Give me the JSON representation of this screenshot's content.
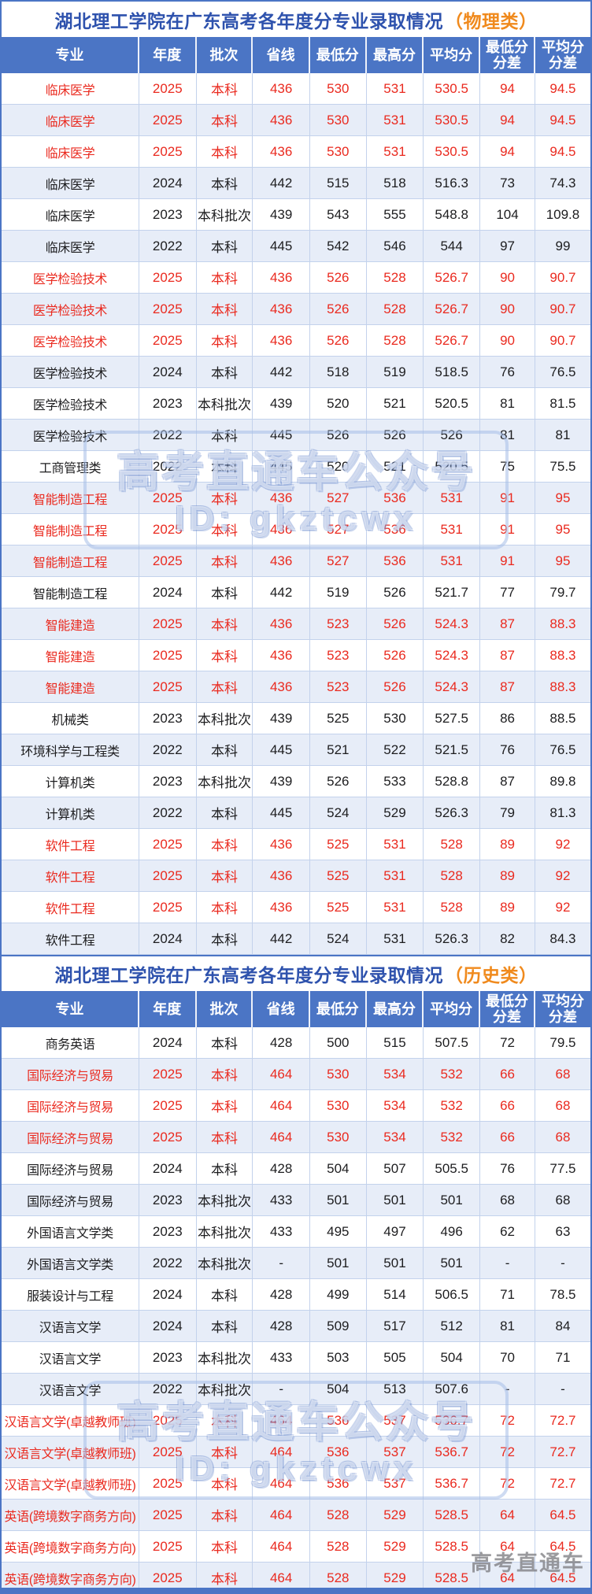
{
  "colors": {
    "accent_blue": "#4b75c5",
    "title_blue": "#2e52ad",
    "tag_orange": "#f08a1d",
    "highlight_red": "#ea2a1f",
    "alt_row": "#e7edf8",
    "grid_line": "#c3d2ec"
  },
  "watermark": {
    "line1": "高考直通车公众号",
    "line2": "ID: gkztcwx",
    "corner": "高考直通车"
  },
  "tables": [
    {
      "title": "湖北理工学院在广东高考各年度分专业录取情况",
      "title_tag": "（物理类）",
      "columns": [
        "专业",
        "年度",
        "批次",
        "省线",
        "最低分",
        "最高分",
        "平均分",
        "最低分\n分差",
        "平均分\n分差"
      ],
      "rows": [
        {
          "red": true,
          "cells": [
            "临床医学",
            "2025",
            "本科",
            "436",
            "530",
            "531",
            "530.5",
            "94",
            "94.5"
          ]
        },
        {
          "red": true,
          "cells": [
            "临床医学",
            "2025",
            "本科",
            "436",
            "530",
            "531",
            "530.5",
            "94",
            "94.5"
          ]
        },
        {
          "red": true,
          "cells": [
            "临床医学",
            "2025",
            "本科",
            "436",
            "530",
            "531",
            "530.5",
            "94",
            "94.5"
          ]
        },
        {
          "red": false,
          "cells": [
            "临床医学",
            "2024",
            "本科",
            "442",
            "515",
            "518",
            "516.3",
            "73",
            "74.3"
          ]
        },
        {
          "red": false,
          "cells": [
            "临床医学",
            "2023",
            "本科批次",
            "439",
            "543",
            "555",
            "548.8",
            "104",
            "109.8"
          ]
        },
        {
          "red": false,
          "cells": [
            "临床医学",
            "2022",
            "本科",
            "445",
            "542",
            "546",
            "544",
            "97",
            "99"
          ]
        },
        {
          "red": true,
          "cells": [
            "医学检验技术",
            "2025",
            "本科",
            "436",
            "526",
            "528",
            "526.7",
            "90",
            "90.7"
          ]
        },
        {
          "red": true,
          "cells": [
            "医学检验技术",
            "2025",
            "本科",
            "436",
            "526",
            "528",
            "526.7",
            "90",
            "90.7"
          ]
        },
        {
          "red": true,
          "cells": [
            "医学检验技术",
            "2025",
            "本科",
            "436",
            "526",
            "528",
            "526.7",
            "90",
            "90.7"
          ]
        },
        {
          "red": false,
          "cells": [
            "医学检验技术",
            "2024",
            "本科",
            "442",
            "518",
            "519",
            "518.5",
            "76",
            "76.5"
          ]
        },
        {
          "red": false,
          "cells": [
            "医学检验技术",
            "2023",
            "本科批次",
            "439",
            "520",
            "521",
            "520.5",
            "81",
            "81.5"
          ]
        },
        {
          "red": false,
          "cells": [
            "医学检验技术",
            "2022",
            "本科",
            "445",
            "526",
            "526",
            "526",
            "81",
            "81"
          ]
        },
        {
          "red": false,
          "cells": [
            "工商管理类",
            "2022",
            "本科",
            "445",
            "520",
            "521",
            "520.5",
            "75",
            "75.5"
          ]
        },
        {
          "red": true,
          "cells": [
            "智能制造工程",
            "2025",
            "本科",
            "436",
            "527",
            "536",
            "531",
            "91",
            "95"
          ]
        },
        {
          "red": true,
          "cells": [
            "智能制造工程",
            "2025",
            "本科",
            "436",
            "527",
            "536",
            "531",
            "91",
            "95"
          ]
        },
        {
          "red": true,
          "cells": [
            "智能制造工程",
            "2025",
            "本科",
            "436",
            "527",
            "536",
            "531",
            "91",
            "95"
          ]
        },
        {
          "red": false,
          "cells": [
            "智能制造工程",
            "2024",
            "本科",
            "442",
            "519",
            "526",
            "521.7",
            "77",
            "79.7"
          ]
        },
        {
          "red": true,
          "cells": [
            "智能建造",
            "2025",
            "本科",
            "436",
            "523",
            "526",
            "524.3",
            "87",
            "88.3"
          ]
        },
        {
          "red": true,
          "cells": [
            "智能建造",
            "2025",
            "本科",
            "436",
            "523",
            "526",
            "524.3",
            "87",
            "88.3"
          ]
        },
        {
          "red": true,
          "cells": [
            "智能建造",
            "2025",
            "本科",
            "436",
            "523",
            "526",
            "524.3",
            "87",
            "88.3"
          ]
        },
        {
          "red": false,
          "cells": [
            "机械类",
            "2023",
            "本科批次",
            "439",
            "525",
            "530",
            "527.5",
            "86",
            "88.5"
          ]
        },
        {
          "red": false,
          "cells": [
            "环境科学与工程类",
            "2022",
            "本科",
            "445",
            "521",
            "522",
            "521.5",
            "76",
            "76.5"
          ]
        },
        {
          "red": false,
          "cells": [
            "计算机类",
            "2023",
            "本科批次",
            "439",
            "526",
            "533",
            "528.8",
            "87",
            "89.8"
          ]
        },
        {
          "red": false,
          "cells": [
            "计算机类",
            "2022",
            "本科",
            "445",
            "524",
            "529",
            "526.3",
            "79",
            "81.3"
          ]
        },
        {
          "red": true,
          "cells": [
            "软件工程",
            "2025",
            "本科",
            "436",
            "525",
            "531",
            "528",
            "89",
            "92"
          ]
        },
        {
          "red": true,
          "cells": [
            "软件工程",
            "2025",
            "本科",
            "436",
            "525",
            "531",
            "528",
            "89",
            "92"
          ]
        },
        {
          "red": true,
          "cells": [
            "软件工程",
            "2025",
            "本科",
            "436",
            "525",
            "531",
            "528",
            "89",
            "92"
          ]
        },
        {
          "red": false,
          "cells": [
            "软件工程",
            "2024",
            "本科",
            "442",
            "524",
            "531",
            "526.3",
            "82",
            "84.3"
          ]
        }
      ]
    },
    {
      "title": "湖北理工学院在广东高考各年度分专业录取情况",
      "title_tag": "（历史类）",
      "columns": [
        "专业",
        "年度",
        "批次",
        "省线",
        "最低分",
        "最高分",
        "平均分",
        "最低分\n分差",
        "平均分\n分差"
      ],
      "rows": [
        {
          "red": false,
          "cells": [
            "商务英语",
            "2024",
            "本科",
            "428",
            "500",
            "515",
            "507.5",
            "72",
            "79.5"
          ]
        },
        {
          "red": true,
          "cells": [
            "国际经济与贸易",
            "2025",
            "本科",
            "464",
            "530",
            "534",
            "532",
            "66",
            "68"
          ]
        },
        {
          "red": true,
          "cells": [
            "国际经济与贸易",
            "2025",
            "本科",
            "464",
            "530",
            "534",
            "532",
            "66",
            "68"
          ]
        },
        {
          "red": true,
          "cells": [
            "国际经济与贸易",
            "2025",
            "本科",
            "464",
            "530",
            "534",
            "532",
            "66",
            "68"
          ]
        },
        {
          "red": false,
          "cells": [
            "国际经济与贸易",
            "2024",
            "本科",
            "428",
            "504",
            "507",
            "505.5",
            "76",
            "77.5"
          ]
        },
        {
          "red": false,
          "cells": [
            "国际经济与贸易",
            "2023",
            "本科批次",
            "433",
            "501",
            "501",
            "501",
            "68",
            "68"
          ]
        },
        {
          "red": false,
          "cells": [
            "外国语言文学类",
            "2023",
            "本科批次",
            "433",
            "495",
            "497",
            "496",
            "62",
            "63"
          ]
        },
        {
          "red": false,
          "cells": [
            "外国语言文学类",
            "2022",
            "本科批次",
            "-",
            "501",
            "501",
            "501",
            "-",
            "-"
          ]
        },
        {
          "red": false,
          "cells": [
            "服装设计与工程",
            "2024",
            "本科",
            "428",
            "499",
            "514",
            "506.5",
            "71",
            "78.5"
          ]
        },
        {
          "red": false,
          "cells": [
            "汉语言文学",
            "2024",
            "本科",
            "428",
            "509",
            "517",
            "512",
            "81",
            "84"
          ]
        },
        {
          "red": false,
          "cells": [
            "汉语言文学",
            "2023",
            "本科批次",
            "433",
            "503",
            "505",
            "504",
            "70",
            "71"
          ]
        },
        {
          "red": false,
          "cells": [
            "汉语言文学",
            "2022",
            "本科批次",
            "-",
            "504",
            "513",
            "507.6",
            "-",
            "-"
          ]
        },
        {
          "red": true,
          "cells": [
            "汉语言文学(卓越教师班)",
            "2025",
            "本科",
            "464",
            "536",
            "537",
            "536.7",
            "72",
            "72.7"
          ]
        },
        {
          "red": true,
          "cells": [
            "汉语言文学(卓越教师班)",
            "2025",
            "本科",
            "464",
            "536",
            "537",
            "536.7",
            "72",
            "72.7"
          ]
        },
        {
          "red": true,
          "cells": [
            "汉语言文学(卓越教师班)",
            "2025",
            "本科",
            "464",
            "536",
            "537",
            "536.7",
            "72",
            "72.7"
          ]
        },
        {
          "red": true,
          "cells": [
            "英语(跨境数字商务方向)",
            "2025",
            "本科",
            "464",
            "528",
            "529",
            "528.5",
            "64",
            "64.5"
          ]
        },
        {
          "red": true,
          "cells": [
            "英语(跨境数字商务方向)",
            "2025",
            "本科",
            "464",
            "528",
            "529",
            "528.5",
            "64",
            "64.5"
          ]
        },
        {
          "red": true,
          "cells": [
            "英语(跨境数字商务方向)",
            "2025",
            "本科",
            "464",
            "528",
            "529",
            "528.5",
            "64",
            "64.5"
          ]
        }
      ]
    }
  ]
}
